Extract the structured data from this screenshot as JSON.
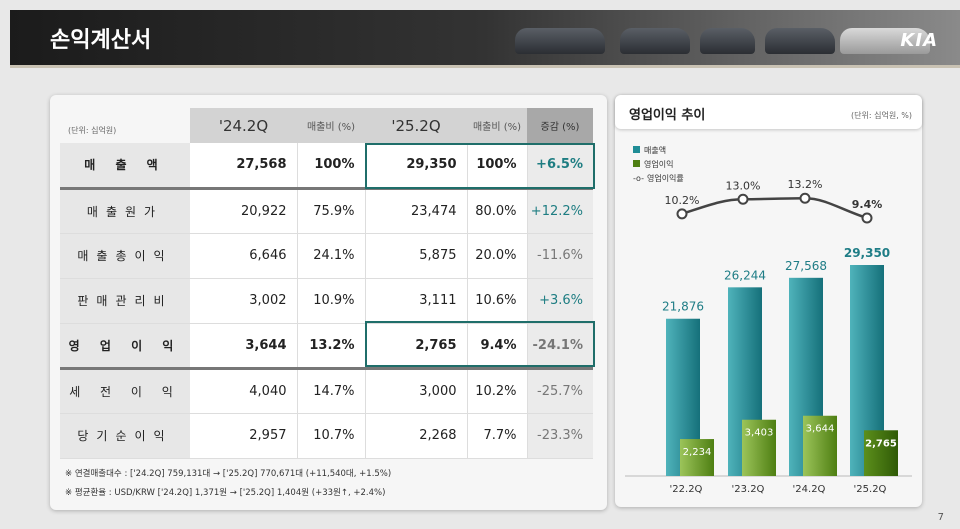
{
  "header": {
    "title": "손익계산서",
    "brand": "KIA"
  },
  "table": {
    "unit": "(단위: 십억원)",
    "columns": [
      "'24.2Q",
      "매출비 (%)",
      "'25.2Q",
      "매출비 (%)",
      "증감 (%)"
    ],
    "rows": [
      {
        "label": "매 출 액",
        "v1": "27,568",
        "r1": "100%",
        "v2": "29,350",
        "r2": "100%",
        "chg": "+6.5%",
        "dir": "pos"
      },
      {
        "label": "매출원가",
        "v1": "20,922",
        "r1": "75.9%",
        "v2": "23,474",
        "r2": "80.0%",
        "chg": "+12.2%",
        "dir": "pos"
      },
      {
        "label": "매출총이익",
        "v1": "6,646",
        "r1": "24.1%",
        "v2": "5,875",
        "r2": "20.0%",
        "chg": "-11.6%",
        "dir": "neg"
      },
      {
        "label": "판매관리비",
        "v1": "3,002",
        "r1": "10.9%",
        "v2": "3,111",
        "r2": "10.6%",
        "chg": "+3.6%",
        "dir": "pos"
      },
      {
        "label": "영 업 이 익",
        "v1": "3,644",
        "r1": "13.2%",
        "v2": "2,765",
        "r2": "9.4%",
        "chg": "-24.1%",
        "dir": "neg"
      },
      {
        "label": "세 전 이 익",
        "v1": "4,040",
        "r1": "14.7%",
        "v2": "3,000",
        "r2": "10.2%",
        "chg": "-25.7%",
        "dir": "neg"
      },
      {
        "label": "당기순이익",
        "v1": "2,957",
        "r1": "10.7%",
        "v2": "2,268",
        "r2": "7.7%",
        "chg": "-23.3%",
        "dir": "neg"
      }
    ],
    "notes": [
      "※  연결매출대수 : ['24.2Q] 759,131대  →  ['25.2Q] 770,671대 (+11,540대, +1.5%)",
      "※  평균환율 : USD/KRW ['24.2Q] 1,371원  →  ['25.2Q] 1,404원 (+33원↑, +2.4%)"
    ]
  },
  "chart_data": {
    "type": "bar",
    "title": "영업이익 추이",
    "unit": "(단위: 십억원, %)",
    "categories": [
      "'22.2Q",
      "'23.2Q",
      "'24.2Q",
      "'25.2Q"
    ],
    "series": [
      {
        "name": "매출액",
        "values": [
          21876,
          26244,
          27568,
          29350
        ],
        "labels": [
          "21,876",
          "26,244",
          "27,568",
          "29,350"
        ],
        "color": "#1f8d96"
      },
      {
        "name": "영업이익",
        "values": [
          2234,
          3403,
          3644,
          2765
        ],
        "labels": [
          "2,234",
          "3,403",
          "3,644",
          "2,765"
        ],
        "color": "#6c9a2a"
      },
      {
        "name": "영업이익률",
        "type": "line",
        "values": [
          10.2,
          13.0,
          13.2,
          9.4
        ],
        "labels": [
          "10.2%",
          "13.0%",
          "13.2%",
          "9.4%"
        ],
        "color": "#444444"
      }
    ]
  },
  "page_number": "7"
}
